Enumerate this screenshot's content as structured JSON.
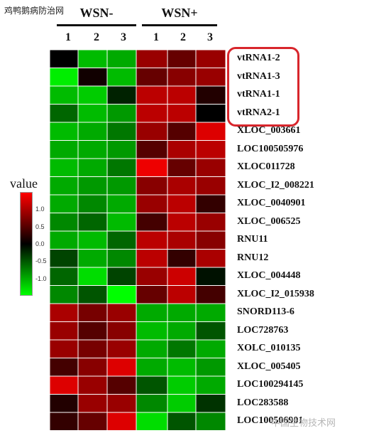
{
  "watermarks": {
    "top_left": "鸡鸭鹅病防治网",
    "bottom_right": "中国生物技术网"
  },
  "chart_data": {
    "type": "heatmap",
    "groups": [
      {
        "name": "WSN-",
        "columns": [
          "1",
          "2",
          "3"
        ]
      },
      {
        "name": "WSN+",
        "columns": [
          "1",
          "2",
          "3"
        ]
      }
    ],
    "rows": [
      "vtRNA1-2",
      "vtRNA1-3",
      "vtRNA1-1",
      "vtRNA2-1",
      "XLOC_003661",
      "LOC100505976",
      "XLOC011728",
      "XLOC_I2_008221",
      "XLOC_0040901",
      "XLOC_006525",
      "RNU11",
      "RNU12",
      "XLOC_004448",
      "XLOC_I2_015938",
      "SNORD113-6",
      "LOC728763",
      "XOLC_010135",
      "XLOC_005405",
      "LOC100294145",
      "LOC283588",
      "LOC100506901"
    ],
    "values": [
      [
        0.0,
        -1.1,
        -1.0,
        0.9,
        0.6,
        0.9
      ],
      [
        -1.4,
        0.1,
        -1.1,
        0.6,
        0.8,
        0.9
      ],
      [
        -1.1,
        -1.2,
        -0.2,
        1.1,
        1.1,
        0.2
      ],
      [
        -0.6,
        -1.1,
        -0.9,
        1.1,
        1.1,
        0.0
      ],
      [
        -1.1,
        -1.0,
        -0.7,
        0.9,
        0.5,
        1.3
      ],
      [
        -1.0,
        -1.0,
        -0.9,
        0.5,
        1.0,
        1.1
      ],
      [
        -1.1,
        -1.0,
        -0.7,
        1.4,
        0.6,
        0.9
      ],
      [
        -1.0,
        -0.9,
        -0.9,
        0.8,
        1.0,
        0.9
      ],
      [
        -1.0,
        -0.8,
        -1.0,
        0.9,
        1.1,
        0.3
      ],
      [
        -0.8,
        -0.6,
        -1.1,
        0.4,
        1.1,
        0.9
      ],
      [
        -1.0,
        -1.1,
        -0.6,
        1.1,
        1.0,
        0.8
      ],
      [
        -0.4,
        -1.0,
        -0.8,
        1.1,
        0.3,
        1.0
      ],
      [
        -0.6,
        -1.3,
        -0.4,
        0.9,
        1.2,
        -0.1
      ],
      [
        -0.8,
        -0.5,
        -1.5,
        0.6,
        1.1,
        0.4
      ],
      [
        1.0,
        0.7,
        0.9,
        -1.0,
        -1.0,
        -1.0
      ],
      [
        0.9,
        0.5,
        0.8,
        -1.1,
        -1.0,
        -0.5
      ],
      [
        0.9,
        0.7,
        0.9,
        -1.0,
        -0.7,
        -1.0
      ],
      [
        0.4,
        0.8,
        1.3,
        -1.0,
        -1.1,
        -0.9
      ],
      [
        1.3,
        0.9,
        0.5,
        -0.5,
        -1.2,
        -1.0
      ],
      [
        0.2,
        0.9,
        0.9,
        -0.8,
        -1.2,
        -0.3
      ],
      [
        0.3,
        0.6,
        1.3,
        -1.3,
        -0.5,
        -0.8
      ]
    ],
    "highlighted_rows": [
      "vtRNA1-2",
      "vtRNA1-3",
      "vtRNA1-1",
      "vtRNA2-1"
    ],
    "legend": {
      "title": "value",
      "ticks": [
        "1.0",
        "0.5",
        "0.0",
        "-0.5",
        "-1.0"
      ],
      "tick_values": [
        1.0,
        0.5,
        0.0,
        -0.5,
        -1.0
      ],
      "range": [
        -1.5,
        1.5
      ],
      "colors": {
        "low": "#00ff00",
        "mid": "#000000",
        "high": "#ff0000"
      }
    }
  }
}
